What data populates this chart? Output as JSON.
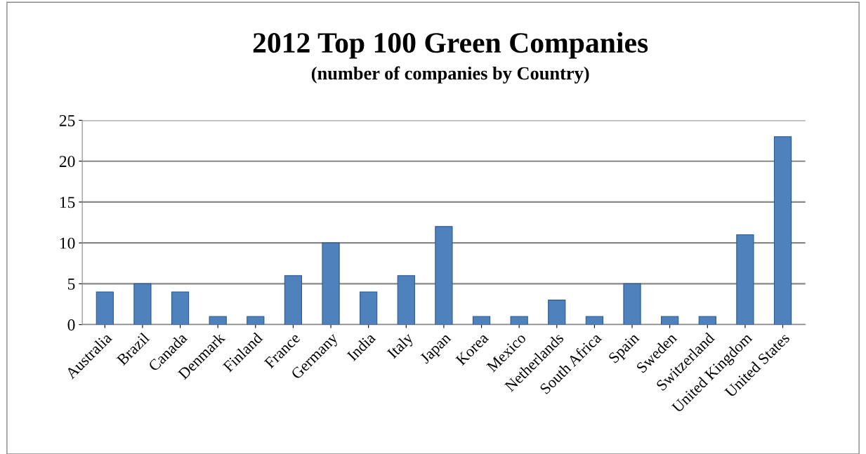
{
  "chart_data": {
    "type": "bar",
    "title": "2012 Top 100 Green Companies",
    "subtitle": "(number of companies by Country)",
    "categories": [
      "Australia",
      "Brazil",
      "Canada",
      "Denmark",
      "Finland",
      "France",
      "Germany",
      "India",
      "Italy",
      "Japan",
      "Korea",
      "Mexico",
      "Netherlands",
      "South Africa",
      "Spain",
      "Sweden",
      "Switzerland",
      "United Kingdom",
      "United States"
    ],
    "values": [
      4,
      5,
      4,
      1,
      1,
      6,
      10,
      4,
      6,
      12,
      1,
      1,
      3,
      1,
      5,
      1,
      1,
      11,
      23
    ],
    "color": "#4f81bd",
    "ylim": [
      0,
      25
    ],
    "yticks": [
      0,
      5,
      10,
      15,
      20,
      25
    ],
    "grid": "y"
  }
}
